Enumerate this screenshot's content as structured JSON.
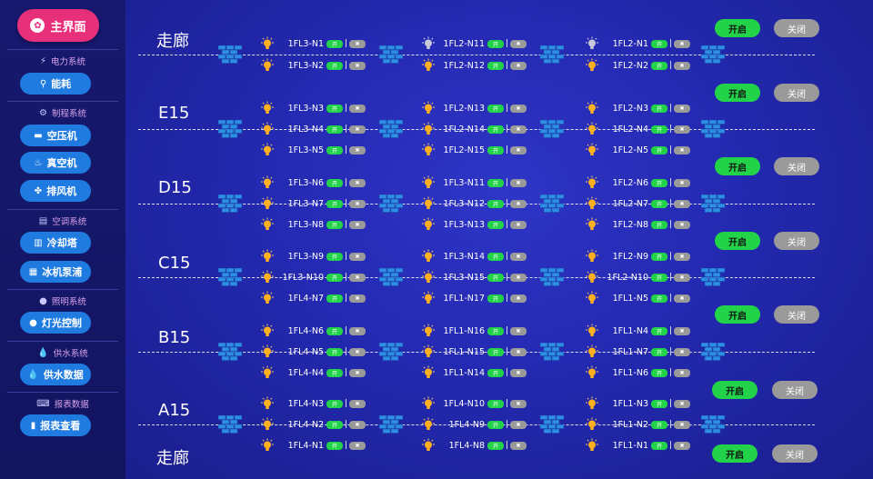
{
  "sidebar": {
    "home": "主界面",
    "sections": [
      {
        "title": "电力系统",
        "buttons": [
          "能耗"
        ]
      },
      {
        "title": "制程系统",
        "buttons": [
          "空压机",
          "真空机",
          "排风机"
        ]
      },
      {
        "title": "空调系统",
        "buttons": [
          "冷却塔",
          "冰机泵浦"
        ]
      },
      {
        "title": "照明系统",
        "buttons": [
          "灯光控制"
        ]
      },
      {
        "title": "供水系统",
        "buttons": [
          "供水数据"
        ]
      },
      {
        "title": "报表数据",
        "buttons": [
          "报表查看"
        ]
      }
    ]
  },
  "rows": [
    {
      "label": "走廊",
      "lamps": [
        [
          "1FL3-N1",
          "1FL3-N2"
        ],
        [
          "1FL2-N11",
          "1FL2-N12"
        ],
        [
          "1FL2-N1",
          "1FL2-N2"
        ]
      ],
      "unlit": [
        [],
        [
          0
        ],
        [
          0
        ]
      ]
    },
    {
      "label": "E15",
      "lamps": [
        [
          "1FL3-N3",
          "1FL3-N4",
          "1FL3-N5"
        ],
        [
          "1FL2-N13",
          "1FL2-N14",
          "1FL2-N15"
        ],
        [
          "1FL2-N3",
          "1FL2-N4",
          "1FL2-N5"
        ]
      ]
    },
    {
      "label": "D15",
      "lamps": [
        [
          "1FL3-N6",
          "1FL3-N7",
          "1FL3-N8"
        ],
        [
          "1FL3-N11",
          "1FL3-N12",
          "1FL3-N13"
        ],
        [
          "1FL2-N6",
          "1FL2-N7",
          "1FL2-N8"
        ]
      ]
    },
    {
      "label": "C15",
      "lamps": [
        [
          "1FL3-N9",
          "1FL3-N10",
          "1FL4-N7"
        ],
        [
          "1FL3-N14",
          "1FL3-N15",
          "1FL1-N17"
        ],
        [
          "1FL2-N9",
          "1FL2-N10",
          "1FL1-N5"
        ]
      ]
    },
    {
      "label": "B15",
      "lamps": [
        [
          "1FL4-N6",
          "1FL4-N5",
          "1FL4-N4"
        ],
        [
          "1FL1-N16",
          "1FL1-N15",
          "1FL1-N14"
        ],
        [
          "1FL1-N4",
          "1FL1-N7",
          "1FL1-N6"
        ]
      ]
    },
    {
      "label": "A15",
      "lamps": [
        [
          "1FL4-N3",
          "1FL4-N2",
          "1FL4-N1"
        ],
        [
          "1FL4-N10",
          "1FL4-N9",
          "1FL4-N8"
        ],
        [
          "1FL1-N3",
          "1FL1-N2",
          "1FL1-N1"
        ]
      ]
    },
    {
      "label": "走廊",
      "lamps": [
        [],
        [],
        []
      ]
    }
  ],
  "toggle": {
    "on": "开",
    "off": "✖",
    "sep": "|"
  },
  "controls": {
    "open": "开启",
    "close": "关闭"
  },
  "colors": {
    "accent": "#e8307a",
    "button": "#1f7be0",
    "on": "#22d34a",
    "off": "#9a9a9a"
  }
}
